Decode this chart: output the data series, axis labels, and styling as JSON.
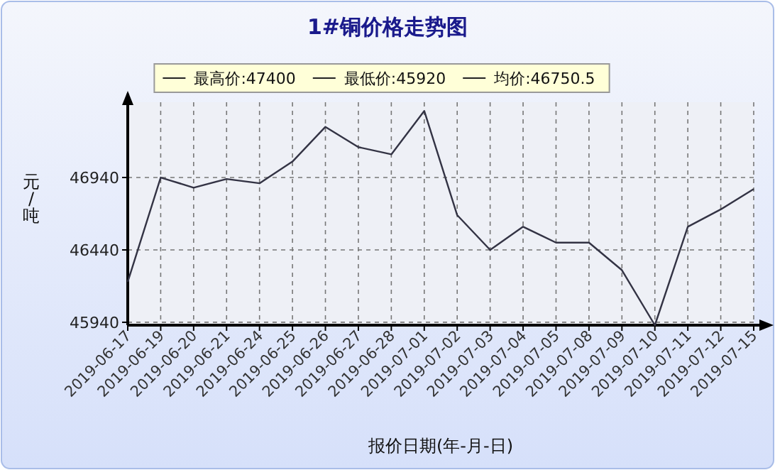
{
  "chart_data": {
    "type": "line",
    "title": "1#铜价格走势图",
    "xlabel": "报价日期(年-月-日)",
    "ylabel": "元/吨",
    "annotations": [
      "最高价:47400",
      "最低价:45920",
      "均价:46750.5"
    ],
    "categories": [
      "2019-06-17",
      "2019-06-19",
      "2019-06-20",
      "2019-06-21",
      "2019-06-24",
      "2019-06-25",
      "2019-06-26",
      "2019-06-27",
      "2019-06-28",
      "2019-07-01",
      "2019-07-02",
      "2019-07-03",
      "2019-07-04",
      "2019-07-05",
      "2019-07-08",
      "2019-07-09",
      "2019-07-10",
      "2019-07-11",
      "2019-07-12",
      "2019-07-15"
    ],
    "series": [
      {
        "color": "#333344",
        "values": [
          46220,
          46940,
          46870,
          46930,
          46900,
          47050,
          47290,
          47150,
          47100,
          47400,
          46680,
          46440,
          46600,
          46490,
          46490,
          46300,
          45920,
          46600,
          46720,
          46860
        ]
      }
    ],
    "ylim": [
      45920,
      47460
    ],
    "yticks": [
      45940,
      46440,
      46940
    ],
    "grid": true,
    "line_style": "solid",
    "marker": "none"
  }
}
